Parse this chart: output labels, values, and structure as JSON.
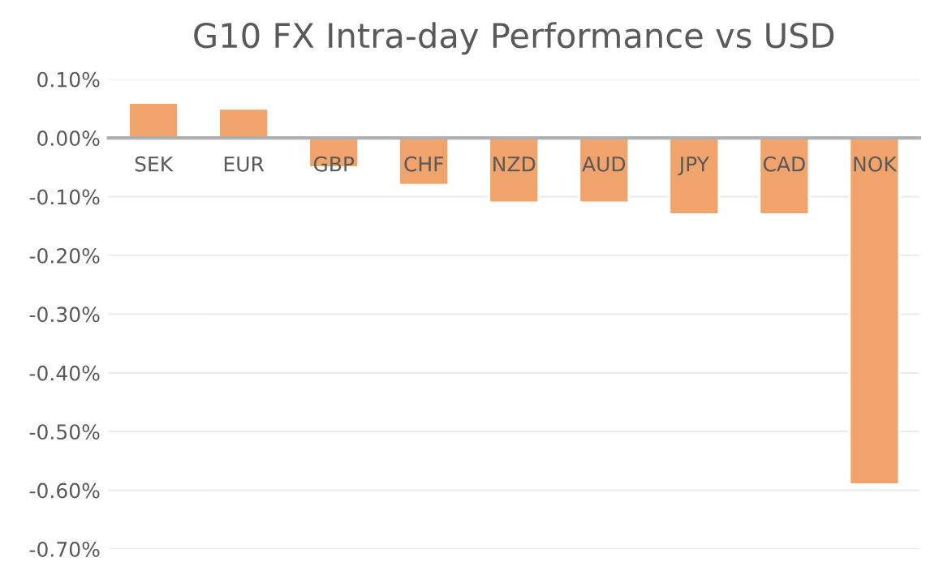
{
  "chart_data": {
    "type": "bar",
    "title": "G10 FX Intra-day Performance vs USD",
    "categories": [
      "SEK",
      "EUR",
      "GBP",
      "CHF",
      "NZD",
      "AUD",
      "JPY",
      "CAD",
      "NOK"
    ],
    "values": [
      0.06,
      0.05,
      -0.05,
      -0.08,
      -0.11,
      -0.11,
      -0.13,
      -0.13,
      -0.59
    ],
    "color": "#f0a46c",
    "ylim": [
      -0.7,
      0.1
    ],
    "yticks": [
      {
        "value": -0.7,
        "label": "-0.70%"
      },
      {
        "value": -0.6,
        "label": "-0.60%"
      },
      {
        "value": -0.5,
        "label": "-0.50%"
      },
      {
        "value": -0.4,
        "label": "-0.40%"
      },
      {
        "value": -0.3,
        "label": "-0.30%"
      },
      {
        "value": -0.2,
        "label": "-0.20%"
      },
      {
        "value": -0.1,
        "label": "-0.10%"
      },
      {
        "value": 0,
        "label": "0.00%"
      },
      {
        "value": 0.1,
        "label": "0.10%"
      }
    ],
    "grid": "y"
  }
}
